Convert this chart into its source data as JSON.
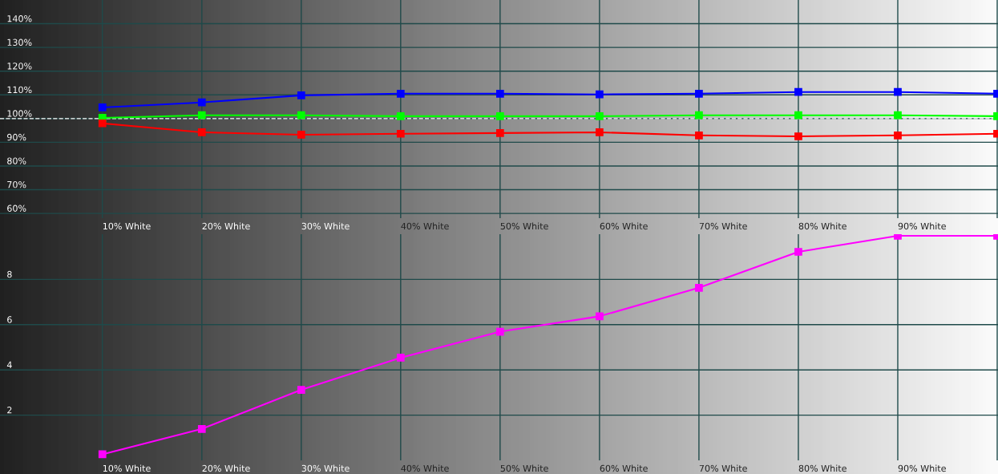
{
  "chart_data": [
    {
      "type": "line",
      "categories": [
        "10% White",
        "20% White",
        "30% White",
        "40% White",
        "50% White",
        "60% White",
        "70% White",
        "80% White",
        "90% White",
        null
      ],
      "series": [
        {
          "color": "#0000ff",
          "values": [
            104.7,
            106.8,
            109.8,
            110.5,
            110.5,
            110.2,
            110.5,
            111.2,
            111.2,
            110.5
          ]
        },
        {
          "color": "#00ff00",
          "values": [
            100.3,
            101.4,
            101.4,
            101,
            101,
            101,
            101.4,
            101.4,
            101.4,
            101
          ]
        },
        {
          "color": "#ff0000",
          "values": [
            98,
            94.2,
            93.2,
            93.6,
            93.9,
            94.2,
            92.9,
            92.5,
            92.9,
            93.6
          ]
        }
      ],
      "ylim": [
        58,
        150
      ],
      "yticks": [
        {
          "value": 60,
          "label": "60%"
        },
        {
          "value": 70,
          "label": "70%"
        },
        {
          "value": 80,
          "label": "80%"
        },
        {
          "value": 90,
          "label": "90%"
        },
        {
          "value": 100,
          "label": "100%"
        },
        {
          "value": 110,
          "label": "110%"
        },
        {
          "value": 120,
          "label": "120%"
        },
        {
          "value": 130,
          "label": "130%"
        },
        {
          "value": 140,
          "label": "140%"
        }
      ],
      "ref_lines": [
        {
          "axis": "y",
          "value": 100,
          "color": "#ffffff",
          "line_style": "dashed"
        }
      ],
      "grid": true,
      "marker": "square",
      "line_style": "solid",
      "legend": false
    },
    {
      "type": "line",
      "categories": [
        "10% White",
        "20% White",
        "30% White",
        "40% White",
        "50% White",
        "60% White",
        "70% White",
        "80% White",
        "90% White",
        null
      ],
      "series": [
        {
          "color": "#ff00ff",
          "values": [
            0.27,
            1.39,
            3.12,
            4.54,
            5.69,
            6.37,
            7.63,
            9.22,
            9.93,
            9.93
          ]
        }
      ],
      "ylim": [
        0,
        10
      ],
      "yticks": [
        2,
        4,
        6,
        8
      ],
      "grid": true,
      "marker": "square",
      "line_style": "solid",
      "legend": false
    }
  ]
}
